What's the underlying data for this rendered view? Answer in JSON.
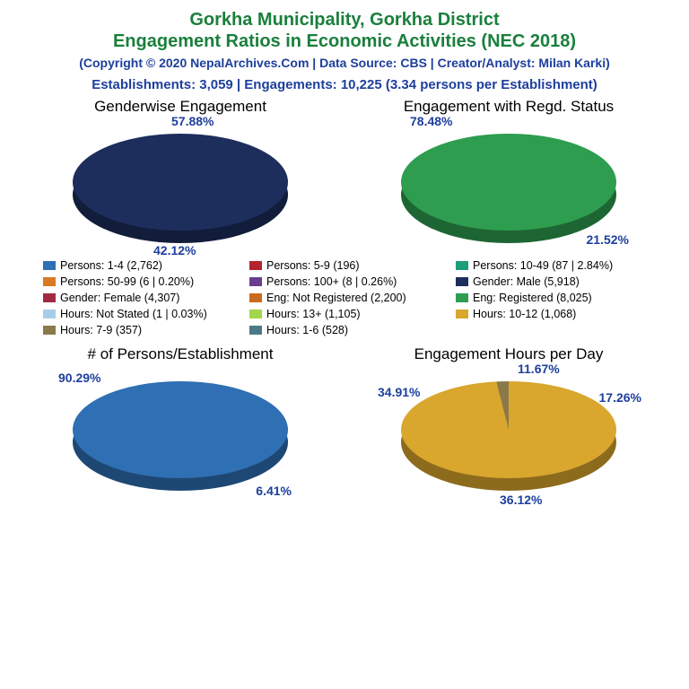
{
  "header": {
    "title_line1": "Gorkha Municipality, Gorkha District",
    "title_line2": "Engagement Ratios in Economic Activities (NEC 2018)",
    "copyright": "(Copyright © 2020 NepalArchives.Com | Data Source: CBS | Creator/Analyst: Milan Karki)",
    "stats": "Establishments: 3,059 | Engagements: 10,225 (3.34 persons per Establishment)",
    "title_color": "#1a7f3c",
    "info_color": "#1d3f9c",
    "title_fontsize": 20,
    "copyright_fontsize": 14,
    "stats_fontsize": 15
  },
  "palette": {
    "blue": "#2f6fb3",
    "red": "#b32431",
    "teal": "#1f9c7b",
    "orange": "#d97a25",
    "purple": "#6a3d8f",
    "navy": "#1d2e5c",
    "crimson": "#a02a42",
    "dk_orange": "#c96b1e",
    "green": "#2e9d4f",
    "lt_blue": "#a9cde8",
    "lime": "#a3d64a",
    "gold": "#d9a62e",
    "olive": "#8a7a4a",
    "slate": "#4a7a8a"
  },
  "charts": {
    "gender": {
      "title": "Genderwise Engagement",
      "type": "pie",
      "slices": [
        {
          "label": "Male",
          "value": 5918,
          "pct": 57.88,
          "color": "#1d2e5c"
        },
        {
          "label": "Female",
          "value": 4307,
          "pct": 42.12,
          "color": "#a02a42"
        }
      ],
      "depth_color_top": "#0f1a38",
      "depth_color_bottom": "#6e1c2d",
      "labels": [
        {
          "text": "57.88%",
          "pos": "top"
        },
        {
          "text": "42.12%",
          "pos": "bottom"
        }
      ]
    },
    "regd": {
      "title": "Engagement with Regd. Status",
      "type": "pie",
      "slices": [
        {
          "label": "Registered",
          "value": 8025,
          "pct": 78.48,
          "color": "#2e9d4f"
        },
        {
          "label": "Not Registered",
          "value": 2200,
          "pct": 21.52,
          "color": "#c96b1e"
        }
      ],
      "depth_color_top": "#1e6e36",
      "depth_color_bottom": "#8f4a14",
      "labels": [
        {
          "text": "78.48%",
          "pos": "top-left"
        },
        {
          "text": "21.52%",
          "pos": "bottom-right"
        }
      ]
    },
    "persons": {
      "title": "# of Persons/Establishment",
      "type": "pie",
      "slices": [
        {
          "label": "1-4",
          "value": 2762,
          "pct": 90.29,
          "color": "#2f6fb3"
        },
        {
          "label": "5-9",
          "value": 196,
          "pct": 6.41,
          "color": "#b32431"
        },
        {
          "label": "10-49",
          "value": 87,
          "pct": 2.84,
          "color": "#1f9c7b"
        },
        {
          "label": "50-99",
          "value": 6,
          "pct": 0.2,
          "color": "#d97a25"
        },
        {
          "label": "100+",
          "value": 8,
          "pct": 0.26,
          "color": "#6a3d8f"
        }
      ],
      "depth_color": "#1f4d7d",
      "labels": [
        {
          "text": "90.29%",
          "pos": "top-left"
        },
        {
          "text": "6.41%",
          "pos": "bottom-right"
        }
      ]
    },
    "hours": {
      "title": "Engagement Hours per Day",
      "type": "pie",
      "slices": [
        {
          "label": "13+",
          "value": 1105,
          "pct": 36.12,
          "color": "#a3d64a"
        },
        {
          "label": "10-12",
          "value": 1068,
          "pct": 34.91,
          "color": "#d9a62e"
        },
        {
          "label": "1-6",
          "value": 528,
          "pct": 17.26,
          "color": "#4a7a8a"
        },
        {
          "label": "7-9",
          "value": 357,
          "pct": 11.67,
          "color": "#8a7a4a"
        },
        {
          "label": "Not Stated",
          "value": 1,
          "pct": 0.03,
          "color": "#a9cde8"
        }
      ],
      "labels": [
        {
          "text": "34.91%",
          "pos": "left"
        },
        {
          "text": "11.67%",
          "pos": "top"
        },
        {
          "text": "17.26%",
          "pos": "right"
        },
        {
          "text": "36.12%",
          "pos": "bottom"
        }
      ]
    }
  },
  "legend": {
    "items": [
      {
        "color": "#2f6fb3",
        "text": "Persons: 1-4 (2,762)"
      },
      {
        "color": "#b32431",
        "text": "Persons: 5-9 (196)"
      },
      {
        "color": "#1f9c7b",
        "text": "Persons: 10-49 (87 | 2.84%)"
      },
      {
        "color": "#d97a25",
        "text": "Persons: 50-99 (6 | 0.20%)"
      },
      {
        "color": "#6a3d8f",
        "text": "Persons: 100+ (8 | 0.26%)"
      },
      {
        "color": "#1d2e5c",
        "text": "Gender: Male (5,918)"
      },
      {
        "color": "#a02a42",
        "text": "Gender: Female (4,307)"
      },
      {
        "color": "#c96b1e",
        "text": "Eng: Not Registered (2,200)"
      },
      {
        "color": "#2e9d4f",
        "text": "Eng: Registered (8,025)"
      },
      {
        "color": "#a9cde8",
        "text": "Hours: Not Stated (1 | 0.03%)"
      },
      {
        "color": "#a3d64a",
        "text": "Hours: 13+ (1,105)"
      },
      {
        "color": "#d9a62e",
        "text": "Hours: 10-12 (1,068)"
      },
      {
        "color": "#8a7a4a",
        "text": "Hours: 7-9 (357)"
      },
      {
        "color": "#4a7a8a",
        "text": "Hours: 1-6 (528)"
      }
    ]
  }
}
